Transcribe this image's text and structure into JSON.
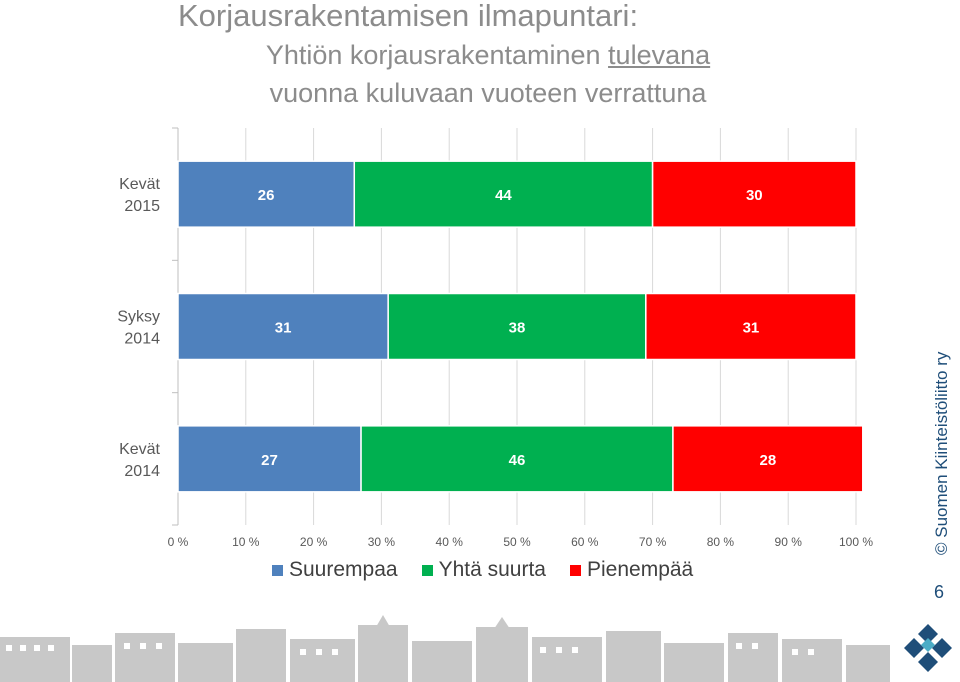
{
  "title": "Korjausrakentamisen ilmapuntari:",
  "subtitle_line1_prefix": "Yhtiön korjausrakentaminen ",
  "subtitle_line1_underlined": "tulevana",
  "subtitle_line2": "vuonna kuluvaan vuoteen verrattuna",
  "copyright": "© Suomen Kiinteistöliitto ry",
  "page_number": "6",
  "icons": {
    "logo": "diamond-grid-logo-icon",
    "skyline": "city-skyline-icon"
  },
  "chart_data": {
    "type": "bar",
    "orientation": "horizontal",
    "stacked": "percent",
    "categories": [
      {
        "line1": "Kevät",
        "line2": "2015"
      },
      {
        "line1": "Syksy",
        "line2": "2014"
      },
      {
        "line1": "Kevät",
        "line2": "2014"
      }
    ],
    "series": [
      {
        "name": "Suurempaa",
        "color": "#4f81bd",
        "values": [
          26,
          31,
          27
        ]
      },
      {
        "name": "Yhtä suurta",
        "color": "#00b050",
        "values": [
          44,
          38,
          46
        ]
      },
      {
        "name": "Pienempää",
        "color": "#ff0000",
        "values": [
          30,
          31,
          28
        ]
      }
    ],
    "xlim": [
      0,
      100
    ],
    "x_ticks": [
      "0 %",
      "10 %",
      "20 %",
      "30 %",
      "40 %",
      "50 %",
      "60 %",
      "70 %",
      "80 %",
      "90 %",
      "100 %"
    ],
    "grid": true,
    "legend": "bottom"
  }
}
